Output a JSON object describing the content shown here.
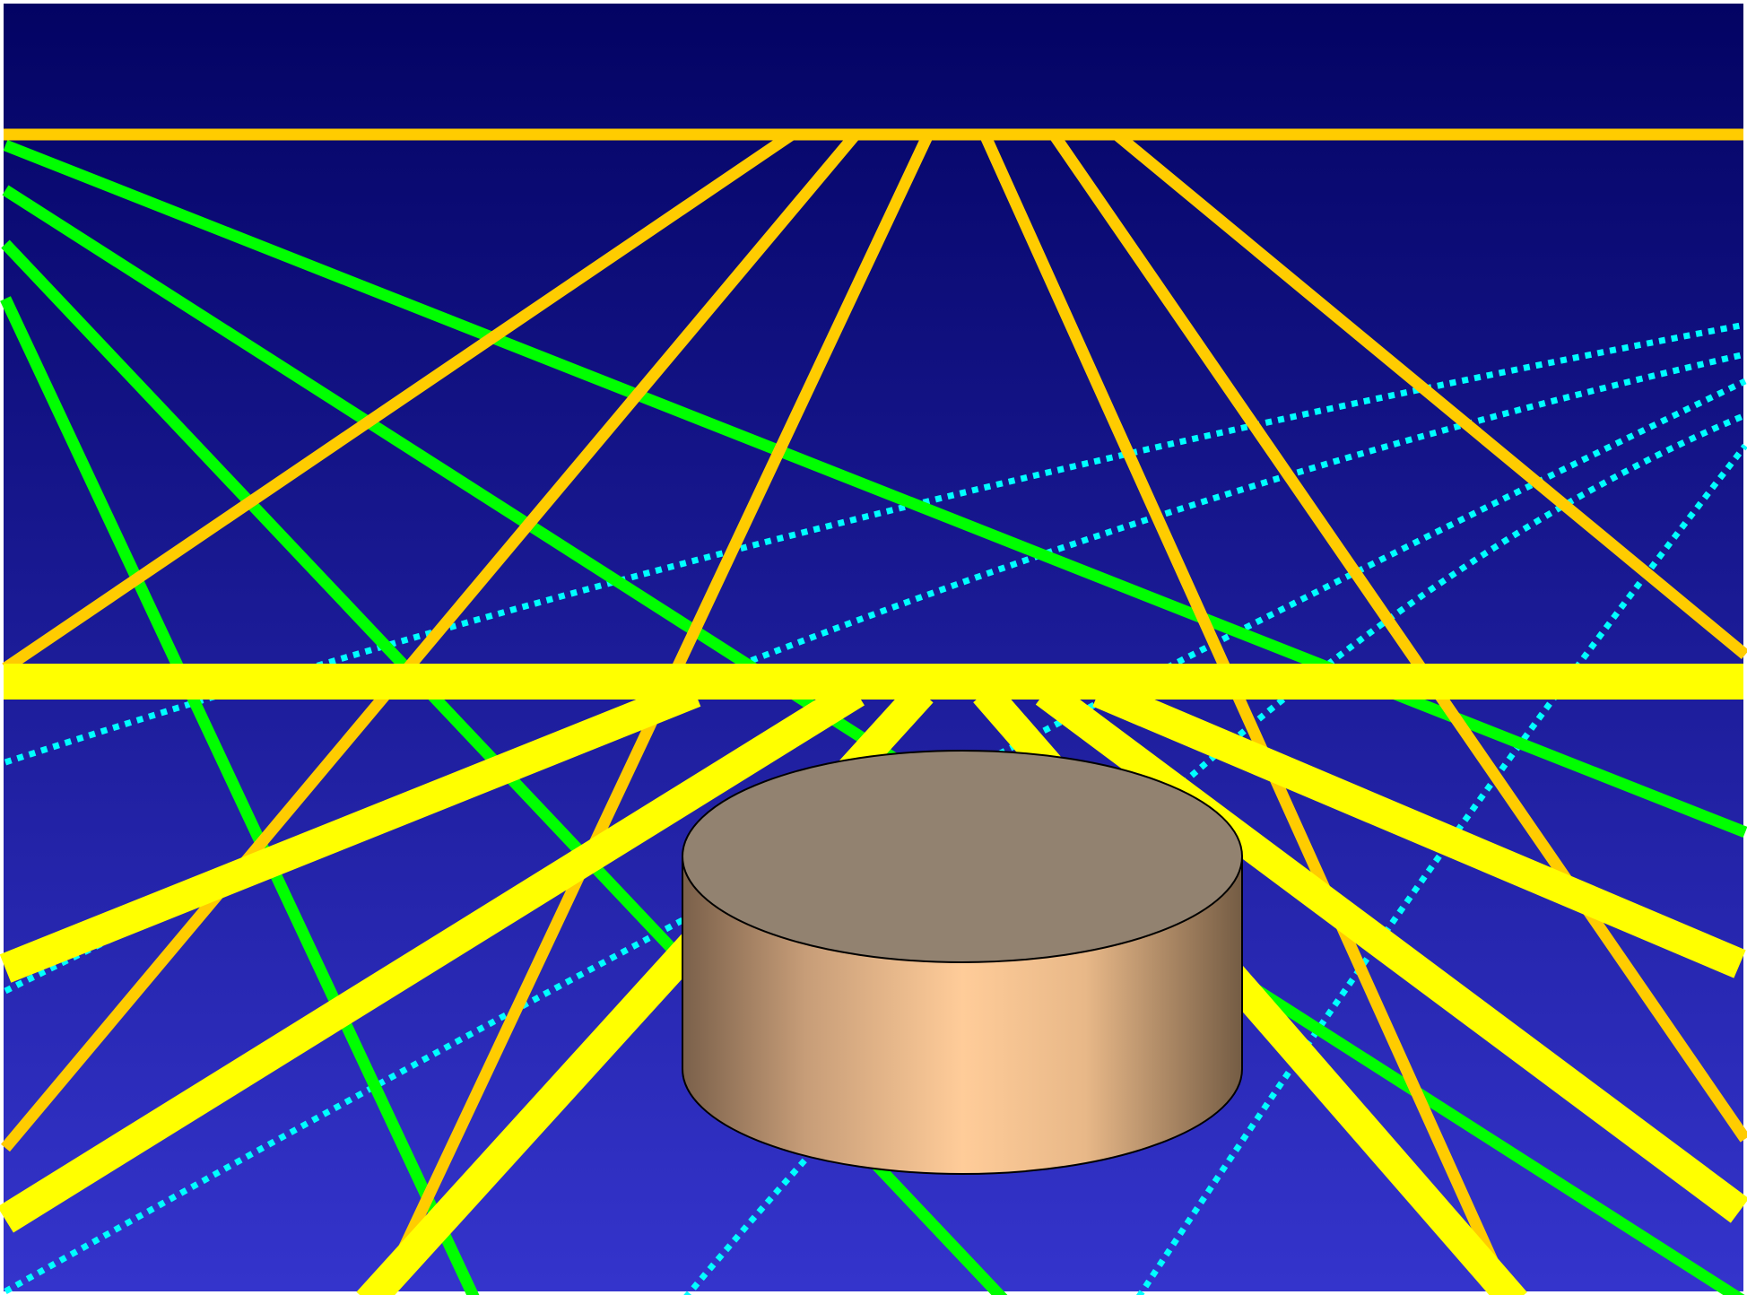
{
  "scene": {
    "background": {
      "top_color": "#030363",
      "bottom_color": "#3434CC"
    },
    "colors": {
      "ray_orange": "#FFCC00",
      "ray_green": "#00FF00",
      "ray_yellow": "#FFFF00",
      "ray_cyan_dotted": "#00FFFF",
      "cylinder_top": "#928270",
      "cylinder_side_highlight": "#FFCC99",
      "cylinder_side_shadow": "#7A604A",
      "outline": "#000000"
    },
    "elements": [
      "upper-reflector-line",
      "lower-reflector-line",
      "orange-ray",
      "green-ray",
      "yellow-beam",
      "cyan-dotted-ray",
      "cylinder"
    ]
  }
}
